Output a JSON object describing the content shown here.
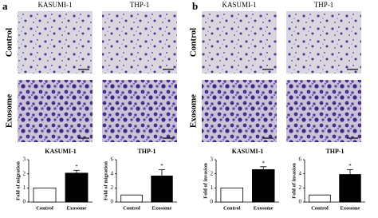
{
  "panels": [
    {
      "label": "a",
      "columns": [
        "KASUMI-1",
        "THP-1"
      ],
      "rows": [
        "Control",
        "Exosome"
      ]
    },
    {
      "label": "b",
      "columns": [
        "KASUMI-1",
        "THP-1"
      ],
      "rows": [
        "Control",
        "Exosome"
      ]
    }
  ],
  "chart_data": [
    {
      "type": "bar",
      "title": "KASUMI-1",
      "ylabel": "Fold of migration",
      "categories": [
        "Control",
        "Exosome"
      ],
      "values": [
        1,
        2.05
      ],
      "errors": [
        0,
        0.2
      ],
      "colors": [
        "#ffffff",
        "#000000"
      ],
      "ylim": [
        0,
        3
      ],
      "yticks": [
        0,
        1,
        2,
        3
      ],
      "annotation": "*"
    },
    {
      "type": "bar",
      "title": "THP-1",
      "ylabel": "Fold of migration",
      "categories": [
        "Control",
        "Exosome"
      ],
      "values": [
        1,
        3.7
      ],
      "errors": [
        0,
        0.9
      ],
      "colors": [
        "#ffffff",
        "#000000"
      ],
      "ylim": [
        0,
        6
      ],
      "yticks": [
        0,
        2,
        4,
        6
      ],
      "annotation": "*"
    },
    {
      "type": "bar",
      "title": "KASUMI-1",
      "ylabel": "Fold of invasion",
      "categories": [
        "Control",
        "Exosome"
      ],
      "values": [
        1,
        2.3
      ],
      "errors": [
        0,
        0.2
      ],
      "colors": [
        "#ffffff",
        "#000000"
      ],
      "ylim": [
        0,
        3
      ],
      "yticks": [
        0,
        1,
        2,
        3
      ],
      "annotation": "*"
    },
    {
      "type": "bar",
      "title": "THP-1",
      "ylabel": "Fold of invasion",
      "categories": [
        "Control",
        "Exosome"
      ],
      "values": [
        1,
        3.9
      ],
      "errors": [
        0,
        0.7
      ],
      "colors": [
        "#ffffff",
        "#000000"
      ],
      "ylim": [
        0,
        6
      ],
      "yticks": [
        0,
        2,
        4,
        6
      ],
      "annotation": "*"
    }
  ]
}
